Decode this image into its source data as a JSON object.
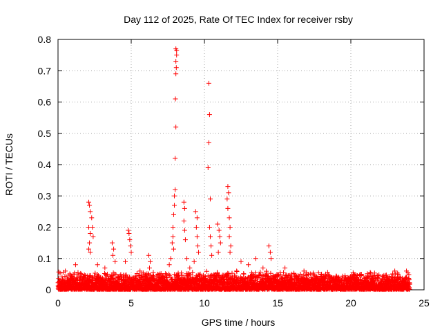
{
  "chart_data": {
    "type": "scatter",
    "title": "Day 112 of 2025, Rate Of TEC Index for receiver rsby",
    "xlabel": "GPS time / hours",
    "ylabel": "ROTI / TECUs",
    "xlim": [
      0,
      25
    ],
    "ylim": [
      0,
      0.8
    ],
    "xticks": [
      0,
      5,
      10,
      15,
      20,
      25
    ],
    "yticks": [
      0,
      0.1,
      0.2,
      0.3,
      0.4,
      0.5,
      0.6,
      0.7,
      0.8
    ],
    "xtick_labels": [
      "0",
      "5",
      "10",
      "15",
      "20",
      "25"
    ],
    "ytick_labels": [
      "0",
      "0.1",
      "0.2",
      "0.3",
      "0.4",
      "0.5",
      "0.6",
      "0.7",
      "0.8"
    ],
    "grid": true,
    "marker": "+",
    "marker_color": "#ff0000",
    "series": [
      {
        "name": "ROTI",
        "points": [
          [
            2.1,
            0.28
          ],
          [
            2.15,
            0.27
          ],
          [
            2.2,
            0.25
          ],
          [
            2.1,
            0.2
          ],
          [
            2.2,
            0.18
          ],
          [
            2.15,
            0.15
          ],
          [
            2.1,
            0.13
          ],
          [
            2.2,
            0.12
          ],
          [
            2.3,
            0.23
          ],
          [
            2.35,
            0.2
          ],
          [
            2.4,
            0.17
          ],
          [
            3.7,
            0.15
          ],
          [
            3.8,
            0.13
          ],
          [
            3.75,
            0.11
          ],
          [
            3.9,
            0.09
          ],
          [
            4.8,
            0.19
          ],
          [
            4.85,
            0.18
          ],
          [
            4.9,
            0.16
          ],
          [
            4.95,
            0.14
          ],
          [
            5.0,
            0.12
          ],
          [
            4.6,
            0.09
          ],
          [
            6.2,
            0.11
          ],
          [
            6.3,
            0.09
          ],
          [
            6.25,
            0.07
          ],
          [
            7.6,
            0.08
          ],
          [
            7.7,
            0.1
          ],
          [
            7.8,
            0.15
          ],
          [
            7.85,
            0.2
          ],
          [
            7.9,
            0.24
          ],
          [
            7.95,
            0.3
          ],
          [
            8.0,
            0.32
          ],
          [
            7.95,
            0.27
          ],
          [
            7.85,
            0.17
          ],
          [
            7.9,
            0.13
          ],
          [
            8.0,
            0.42
          ],
          [
            8.05,
            0.52
          ],
          [
            8.02,
            0.61
          ],
          [
            8.05,
            0.69
          ],
          [
            8.08,
            0.71
          ],
          [
            8.05,
            0.73
          ],
          [
            8.1,
            0.75
          ],
          [
            8.05,
            0.77
          ],
          [
            8.1,
            0.765
          ],
          [
            8.6,
            0.28
          ],
          [
            8.65,
            0.26
          ],
          [
            8.6,
            0.22
          ],
          [
            8.65,
            0.19
          ],
          [
            8.7,
            0.16
          ],
          [
            8.8,
            0.1
          ],
          [
            9.4,
            0.25
          ],
          [
            9.5,
            0.23
          ],
          [
            9.45,
            0.2
          ],
          [
            9.5,
            0.17
          ],
          [
            9.55,
            0.14
          ],
          [
            9.6,
            0.12
          ],
          [
            9.3,
            0.09
          ],
          [
            10.3,
            0.66
          ],
          [
            10.35,
            0.56
          ],
          [
            10.3,
            0.47
          ],
          [
            10.25,
            0.39
          ],
          [
            10.4,
            0.29
          ],
          [
            10.35,
            0.2
          ],
          [
            10.4,
            0.17
          ],
          [
            10.45,
            0.14
          ],
          [
            10.5,
            0.11
          ],
          [
            10.9,
            0.21
          ],
          [
            11.0,
            0.19
          ],
          [
            11.05,
            0.17
          ],
          [
            11.1,
            0.15
          ],
          [
            10.95,
            0.12
          ],
          [
            11.6,
            0.33
          ],
          [
            11.65,
            0.31
          ],
          [
            11.55,
            0.29
          ],
          [
            11.6,
            0.26
          ],
          [
            11.7,
            0.23
          ],
          [
            11.75,
            0.2
          ],
          [
            11.7,
            0.17
          ],
          [
            11.8,
            0.14
          ],
          [
            11.75,
            0.12
          ],
          [
            12.5,
            0.09
          ],
          [
            13.0,
            0.08
          ],
          [
            13.5,
            0.1
          ],
          [
            14.0,
            0.07
          ],
          [
            14.4,
            0.14
          ],
          [
            14.5,
            0.12
          ],
          [
            14.55,
            0.1
          ],
          [
            15.5,
            0.07
          ],
          [
            16.8,
            0.06
          ],
          [
            18.0,
            0.05
          ],
          [
            20.2,
            0.05
          ],
          [
            23.0,
            0.06
          ],
          [
            23.8,
            0.06
          ],
          [
            0.5,
            0.06
          ],
          [
            1.2,
            0.08
          ],
          [
            1.6,
            0.05
          ],
          [
            2.7,
            0.08
          ],
          [
            3.2,
            0.07
          ],
          [
            5.6,
            0.06
          ],
          [
            6.8,
            0.05
          ],
          [
            9.0,
            0.07
          ],
          [
            12.2,
            0.06
          ],
          [
            13.3,
            0.05
          ]
        ],
        "band": {
          "x_range": [
            0,
            24
          ],
          "typical_range": [
            0,
            0.05
          ],
          "description_values": [
            0.01,
            0.02,
            0.03,
            0.04,
            0.05
          ]
        }
      }
    ]
  }
}
